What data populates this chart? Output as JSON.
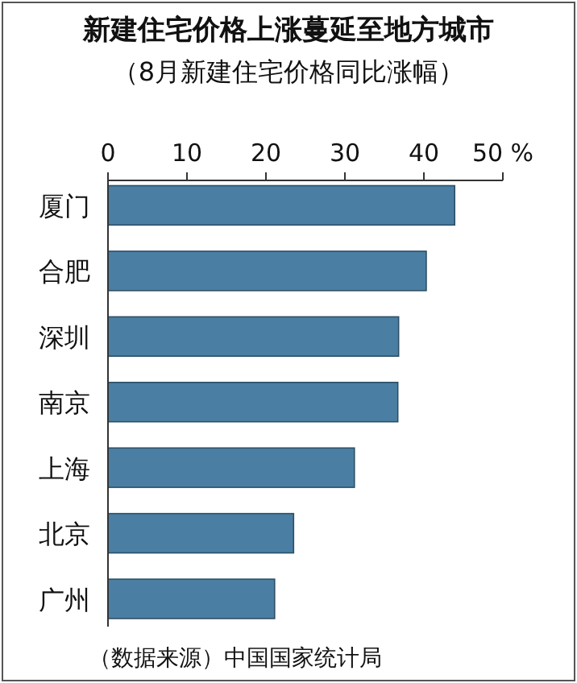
{
  "chart_data": {
    "type": "bar",
    "orientation": "horizontal",
    "title": "新建住宅价格上涨蔓延至地方城市",
    "subtitle": "（8月新建住宅价格同比涨幅）",
    "categories": [
      "厦门",
      "合肥",
      "深圳",
      "南京",
      "上海",
      "北京",
      "广州"
    ],
    "values": [
      43.9,
      40.3,
      36.8,
      36.7,
      31.2,
      23.5,
      21.1
    ],
    "color": "#4a7fa3",
    "xlim": [
      0,
      50
    ],
    "xticks": [
      0,
      10,
      20,
      30,
      40,
      {
        "value": 50,
        "label": "50 %"
      }
    ],
    "annotations": [
      "（数据来源）中国国家统计局"
    ]
  }
}
